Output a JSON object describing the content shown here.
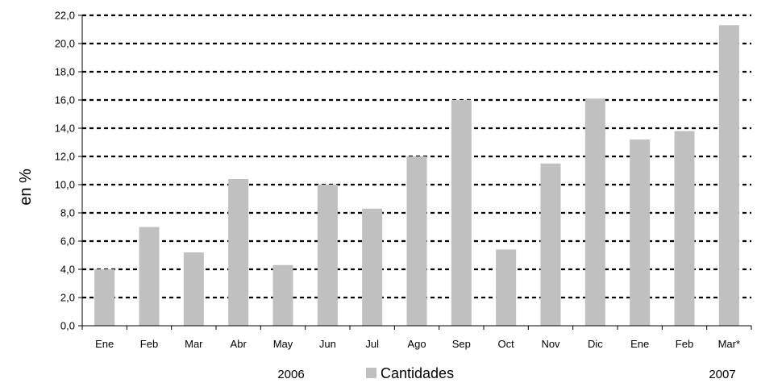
{
  "chart_data": {
    "type": "bar",
    "ylabel": "en %",
    "ylim": [
      0,
      22
    ],
    "yticks": [
      "0,0",
      "2,0",
      "4,0",
      "6,0",
      "8,0",
      "10,0",
      "12,0",
      "14,0",
      "16,0",
      "18,0",
      "20,0",
      "22,0"
    ],
    "grid": "horizontal dashed",
    "categories": [
      "Ene",
      "Feb",
      "Mar",
      "Abr",
      "May",
      "Jun",
      "Jul",
      "Ago",
      "Sep",
      "Oct",
      "Nov",
      "Dic",
      "Ene",
      "Feb",
      "Mar*"
    ],
    "series": [
      {
        "name": "Cantidades",
        "values": [
          4.0,
          7.0,
          5.2,
          10.4,
          4.3,
          10.0,
          8.3,
          12.0,
          16.0,
          5.4,
          11.5,
          16.1,
          13.2,
          13.8,
          21.3
        ]
      }
    ],
    "year_labels": [
      "2006",
      "2007"
    ],
    "legend_position": "bottom",
    "bar_color": "#c0c0c0"
  }
}
